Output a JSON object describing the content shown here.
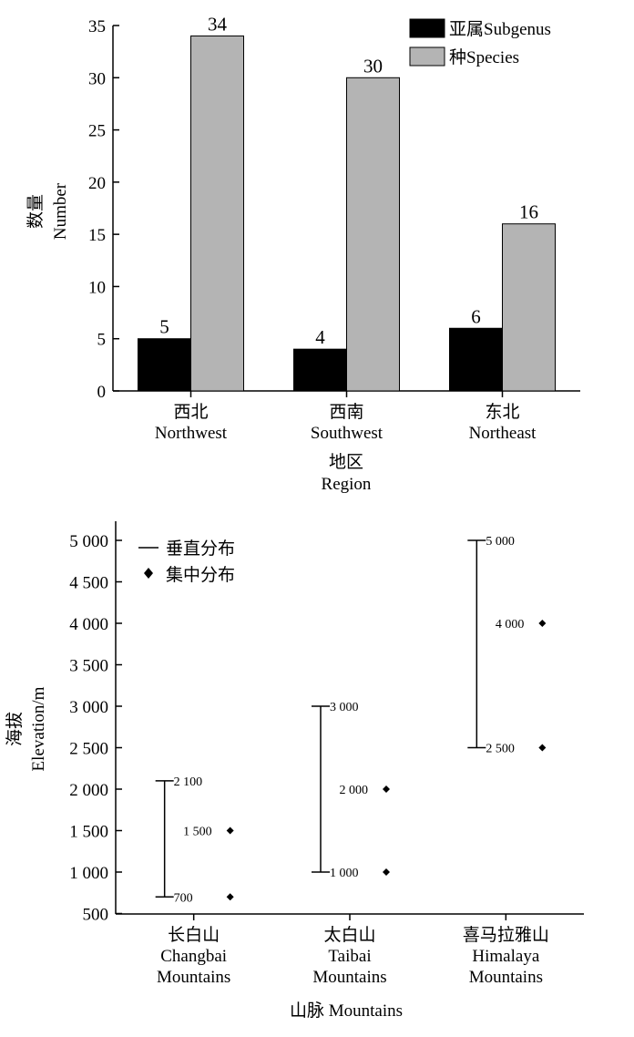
{
  "chart_data": [
    {
      "type": "bar",
      "categories": [
        "西北",
        "西南",
        "东北"
      ],
      "categories_en": [
        "Northwest",
        "Southwest",
        "Northeast"
      ],
      "series": [
        {
          "name": "亚属Subgenus",
          "values": [
            5,
            4,
            6
          ],
          "color": "#000000"
        },
        {
          "name": "种Species",
          "values": [
            34,
            30,
            16
          ],
          "color": "#b4b4b4"
        }
      ],
      "data_labels": [
        [
          "5",
          "4",
          "6"
        ],
        [
          "34",
          "30",
          "16"
        ]
      ],
      "ylabel_cn": "数量",
      "ylabel_en": "Number",
      "xlabel_cn": "地区",
      "xlabel_en": "Region",
      "ylim": [
        0,
        35
      ],
      "yticks": [
        0,
        5,
        10,
        15,
        20,
        25,
        30,
        35
      ],
      "ytick_labels": [
        "0",
        "5",
        "10",
        "15",
        "20",
        "25",
        "30",
        "35"
      ],
      "legend_position": "top-right"
    },
    {
      "type": "range-scatter",
      "categories_cn": [
        "长白山",
        "太白山",
        "喜马拉雅山"
      ],
      "categories_en": [
        "Changbai",
        "Taibai",
        "Himalaya"
      ],
      "categories_suffix": "Mountains",
      "vertical_ranges": [
        [
          700,
          2100
        ],
        [
          1000,
          3000
        ],
        [
          2500,
          5000
        ]
      ],
      "range_labels": [
        [
          "700",
          "2 100"
        ],
        [
          "1 000",
          "3 000"
        ],
        [
          "2 500",
          "5 000"
        ]
      ],
      "concentrated_points": [
        [
          700,
          1500
        ],
        [
          1000,
          2000
        ],
        [
          2500,
          4000
        ]
      ],
      "point_labels": [
        [
          null,
          "1 500"
        ],
        [
          null,
          "2 000"
        ],
        [
          null,
          "4 000"
        ]
      ],
      "legend": [
        "垂直分布",
        "集中分布"
      ],
      "ylabel_cn": "海拔",
      "ylabel_en": "Elevation/m",
      "xlabel": "山脉 Mountains",
      "ylim": [
        500,
        5250
      ],
      "yticks": [
        500,
        1000,
        1500,
        2000,
        2500,
        3000,
        3500,
        4000,
        4500,
        5000
      ],
      "ytick_labels": [
        "500",
        "1 000",
        "1 500",
        "2 000",
        "2 500",
        "3 000",
        "3 500",
        "4 000",
        "4 500",
        "5 000"
      ],
      "legend_position": "top-left"
    }
  ]
}
